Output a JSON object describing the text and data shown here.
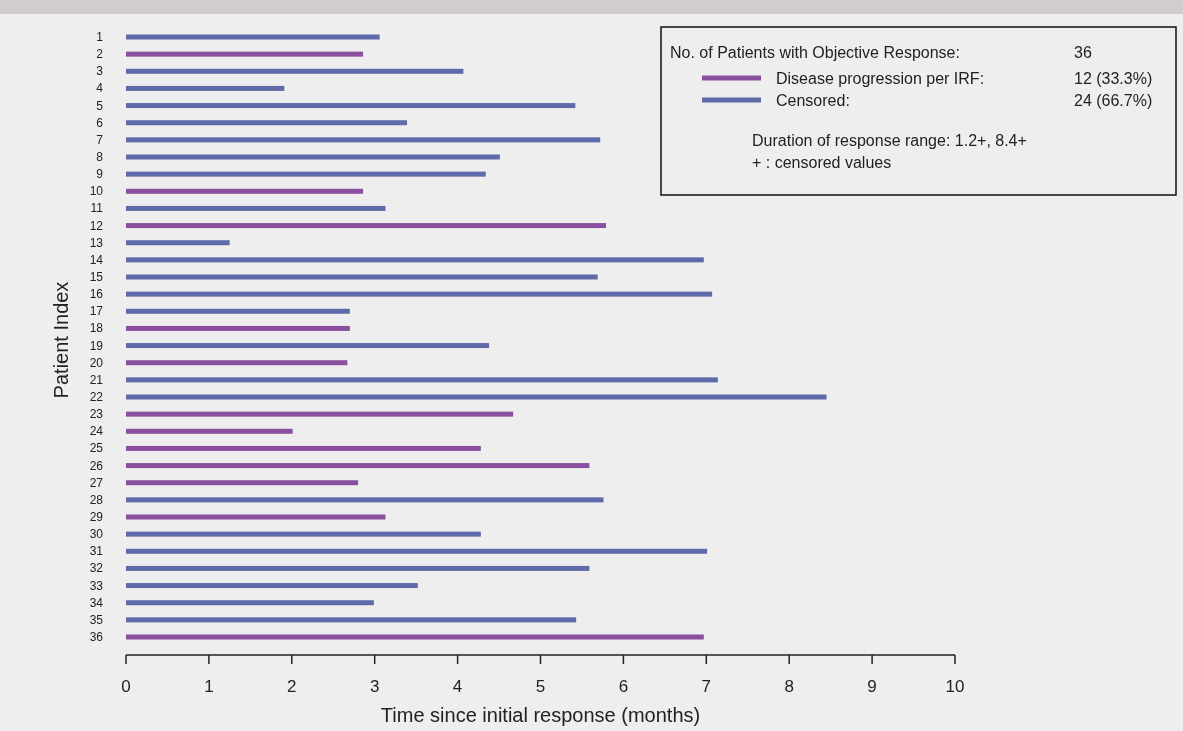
{
  "chart_data": {
    "type": "bar",
    "orientation": "horizontal",
    "categories": [
      "1",
      "2",
      "3",
      "4",
      "5",
      "6",
      "7",
      "8",
      "9",
      "10",
      "11",
      "12",
      "13",
      "14",
      "15",
      "16",
      "17",
      "18",
      "19",
      "20",
      "21",
      "22",
      "23",
      "24",
      "25",
      "26",
      "27",
      "28",
      "29",
      "30",
      "31",
      "32",
      "33",
      "34",
      "35",
      "36"
    ],
    "series": [
      {
        "name": "Disease progression per IRF:",
        "color": "#8a4f9e",
        "values": [
          null,
          2.86,
          null,
          null,
          null,
          null,
          null,
          null,
          null,
          2.86,
          null,
          5.79,
          null,
          null,
          null,
          null,
          null,
          2.7,
          null,
          2.67,
          null,
          null,
          4.67,
          2.01,
          4.28,
          5.59,
          2.8,
          null,
          3.13,
          null,
          null,
          null,
          null,
          null,
          null,
          6.97
        ]
      },
      {
        "name": "Censored:",
        "color": "#5f6aa8",
        "values": [
          3.06,
          null,
          4.07,
          1.91,
          5.42,
          3.39,
          5.72,
          4.51,
          4.34,
          null,
          3.13,
          null,
          1.25,
          6.97,
          5.69,
          7.07,
          2.7,
          null,
          4.38,
          null,
          7.14,
          8.45,
          null,
          null,
          null,
          null,
          null,
          5.76,
          null,
          4.28,
          7.01,
          5.59,
          3.52,
          2.99,
          5.43,
          null
        ]
      }
    ],
    "xlim": [
      0,
      10
    ],
    "xticks": [
      0,
      1,
      2,
      3,
      4,
      5,
      6,
      7,
      8,
      9,
      10
    ],
    "xlabel": "Time since initial response (months)",
    "ylabel": "Patient Index",
    "legend": "top right",
    "legend_title": "No. of Patients with Objective Response:",
    "annotations": [
      "36",
      "12 (33.3%)",
      "24 (66.7%)",
      "Duration of response range: 1.2+, 8.4+",
      "+ : censored values"
    ]
  }
}
